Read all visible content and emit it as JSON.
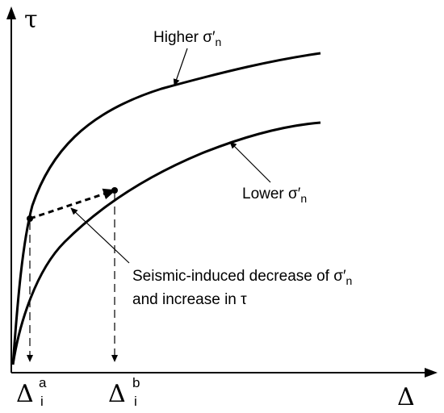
{
  "axes": {
    "y_symbol": "τ",
    "x_symbol": "Δ"
  },
  "curves": {
    "higher": {
      "text": "Higher σ′",
      "sub": "n"
    },
    "lower": {
      "text": "Lower σ′",
      "sub": "n"
    }
  },
  "annotation": {
    "line1": "Seismic-induced decrease of σ′",
    "line1_sub": "n",
    "line2": "and increase in τ"
  },
  "points": {
    "a": {
      "base": "Δ",
      "sup": "a",
      "sub": "i"
    },
    "b": {
      "base": "Δ",
      "sup": "b",
      "sub": "i"
    }
  }
}
